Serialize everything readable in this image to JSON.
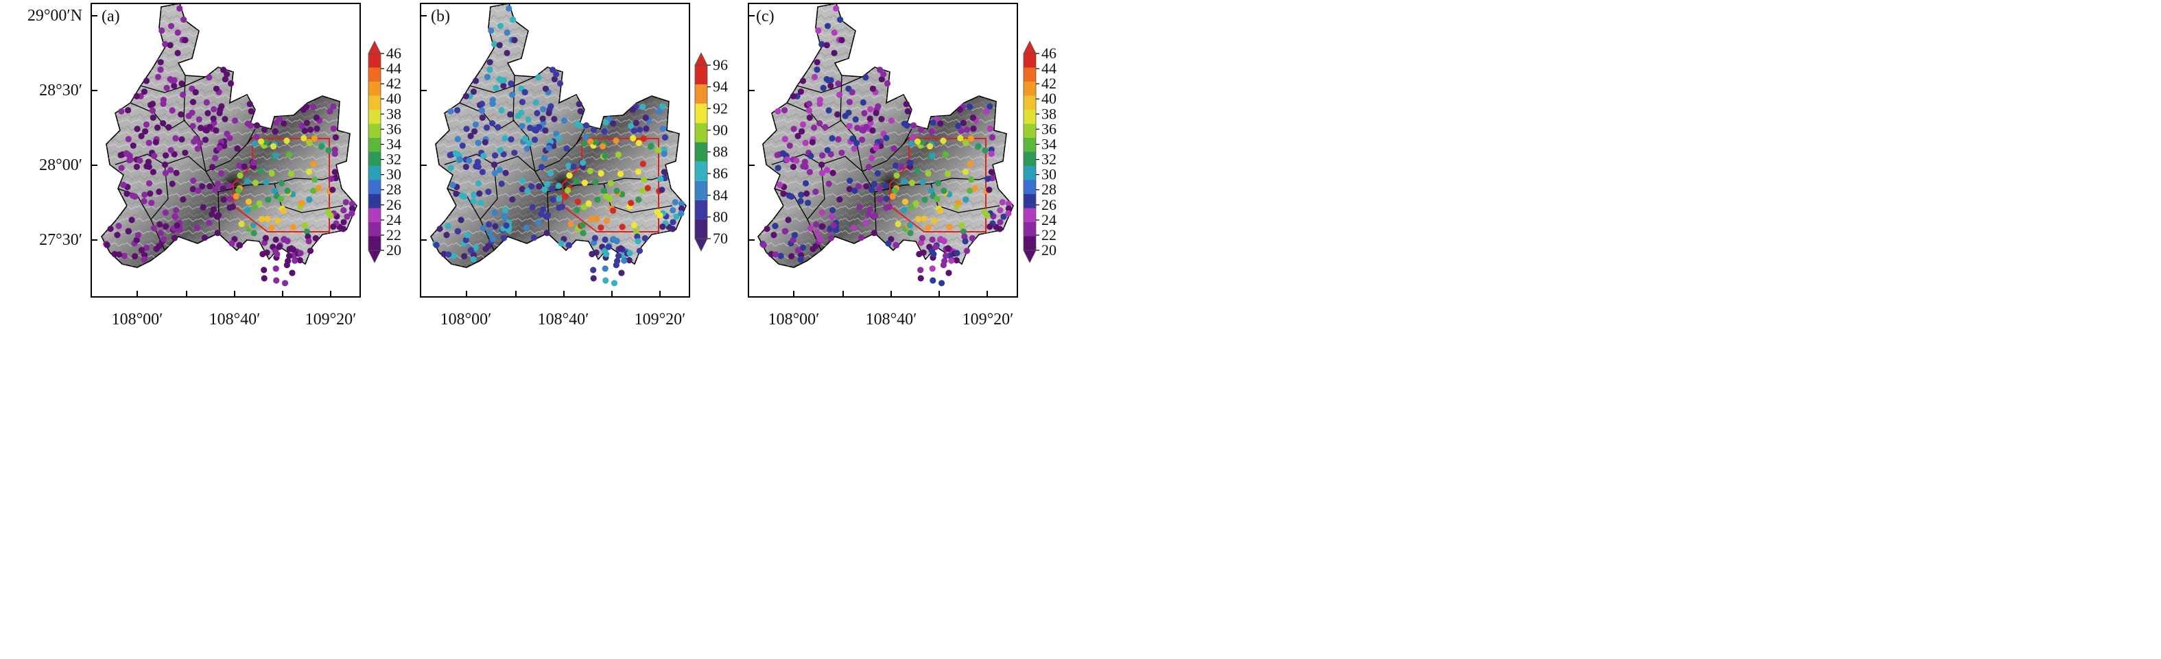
{
  "panels": [
    {
      "label": "(a)",
      "colorbar": {
        "ticks": [
          "20",
          "22",
          "24",
          "26",
          "28",
          "30",
          "32",
          "34",
          "36",
          "38",
          "40",
          "42",
          "44",
          "46"
        ]
      }
    },
    {
      "label": "(b)",
      "colorbar": {
        "ticks": [
          "70",
          "80",
          "84",
          "86",
          "88",
          "90",
          "92",
          "94",
          "96"
        ]
      }
    },
    {
      "label": "(c)",
      "colorbar": {
        "ticks": [
          "20",
          "22",
          "24",
          "26",
          "28",
          "30",
          "32",
          "34",
          "36",
          "38",
          "40",
          "42",
          "44",
          "46"
        ]
      }
    }
  ],
  "axes": {
    "y_ticks": [
      "29°00′N",
      "28°30′",
      "28°00′",
      "27°30′"
    ],
    "x_ticks": [
      "108°00′",
      "108°40′",
      "109°20′"
    ]
  },
  "colors": {
    "scale_a_c": [
      "#5b0f6e",
      "#8b2aa0",
      "#b23bbe",
      "#2e3a9b",
      "#3a6fd0",
      "#2aa0b8",
      "#2e9a5a",
      "#5cb83a",
      "#9bd12e",
      "#dde234",
      "#f2c22c",
      "#f39a23",
      "#ef6b1f",
      "#d72a25"
    ],
    "scale_b": [
      "#46247a",
      "#3b3aa2",
      "#3b82c8",
      "#33b3bf",
      "#2e9a4e",
      "#99d02c",
      "#efe732",
      "#f3912a",
      "#d52a22"
    ],
    "region_box": "#e02020",
    "boundary": "#000000"
  }
}
